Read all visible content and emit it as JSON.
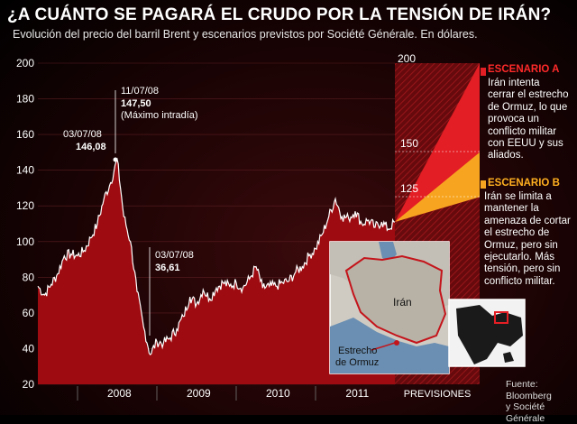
{
  "header": {
    "title": "¿A CUÁNTO SE PAGARÁ EL CRUDO POR LA TENSIÓN DE IRÁN?",
    "subtitle": "Evolución del precio del barril Brent y escenarios previstos por Société Générale. En dólares."
  },
  "colors": {
    "area": "#9e0b10",
    "line": "#ffffff",
    "scenario_a": "#e31e24",
    "scenario_b": "#f7a520",
    "scenario_a_title": "#ff2a2a",
    "scenario_b_title": "#ffb020"
  },
  "chart_data": {
    "type": "area",
    "title": "¿A CUÁNTO SE PAGARÁ EL CRUDO POR LA TENSIÓN DE IRÁN?",
    "subtitle": "Evolución del precio del barril Brent y escenarios previstos por Société Générale. En dólares.",
    "ylim": [
      20,
      200
    ],
    "yticks": [
      "20",
      "40",
      "60",
      "80",
      "100",
      "120",
      "140",
      "160",
      "180",
      "200"
    ],
    "xticks": [
      "2008",
      "2009",
      "2010",
      "2011",
      "PREVISIONES"
    ],
    "x_start": "2007-07",
    "x_end": "2012-01",
    "series": [
      {
        "values": [
          [
            "2007-07",
            75
          ],
          [
            "2007-08",
            70
          ],
          [
            "2007-09",
            76
          ],
          [
            "2007-10",
            82
          ],
          [
            "2007-11",
            92
          ],
          [
            "2007-12",
            93
          ],
          [
            "2008-01",
            92
          ],
          [
            "2008-02",
            95
          ],
          [
            "2008-03",
            102
          ],
          [
            "2008-04",
            110
          ],
          [
            "2008-05",
            124
          ],
          [
            "2008-06",
            133
          ],
          [
            "2008-07",
            146.08
          ],
          [
            "2008-08",
            114
          ],
          [
            "2008-09",
            100
          ],
          [
            "2008-10",
            72
          ],
          [
            "2008-11",
            52
          ],
          [
            "2008-12",
            36.61
          ],
          [
            "2009-01",
            44
          ],
          [
            "2009-02",
            43
          ],
          [
            "2009-03",
            46
          ],
          [
            "2009-04",
            51
          ],
          [
            "2009-05",
            58
          ],
          [
            "2009-06",
            69
          ],
          [
            "2009-07",
            65
          ],
          [
            "2009-08",
            73
          ],
          [
            "2009-09",
            68
          ],
          [
            "2009-10",
            74
          ],
          [
            "2009-11",
            77
          ],
          [
            "2009-12",
            75
          ],
          [
            "2010-01",
            77
          ],
          [
            "2010-02",
            74
          ],
          [
            "2010-03",
            79
          ],
          [
            "2010-04",
            86
          ],
          [
            "2010-05",
            74
          ],
          [
            "2010-06",
            75
          ],
          [
            "2010-07",
            75
          ],
          [
            "2010-08",
            77
          ],
          [
            "2010-09",
            78
          ],
          [
            "2010-10",
            83
          ],
          [
            "2010-11",
            86
          ],
          [
            "2010-12",
            92
          ],
          [
            "2011-01",
            96
          ],
          [
            "2011-02",
            104
          ],
          [
            "2011-03",
            114
          ],
          [
            "2011-04",
            124
          ],
          [
            "2011-05",
            114
          ],
          [
            "2011-06",
            113
          ],
          [
            "2011-07",
            117
          ],
          [
            "2011-08",
            110
          ],
          [
            "2011-09",
            112
          ],
          [
            "2011-10",
            108
          ],
          [
            "2011-11",
            111
          ],
          [
            "2011-12",
            107
          ],
          [
            "2012-01",
            111
          ]
        ]
      }
    ],
    "scenarios": [
      {
        "name": "ESCENARIO A",
        "values": [
          111,
          200
        ],
        "text": [
          "Irán intenta",
          "cerrar el estrecho",
          "de Ormuz, lo que",
          "provoca un",
          "conflicto militar",
          "con EEUU y sus",
          "aliados."
        ]
      },
      {
        "name": "ESCENARIO B",
        "values": [
          111,
          150
        ],
        "text": [
          "Irán se limita a",
          "mantener la",
          "amenaza de cortar",
          "el estrecho de",
          "Ormuz, pero sin",
          "ejecutarlo. Más",
          "tensión, pero sin",
          "conflicto militar."
        ]
      }
    ],
    "forecast_labels": [
      "200",
      "150",
      "125"
    ],
    "annotations": [
      {
        "date": "11/07/08",
        "value": "147,50",
        "note": "(Máximo intradía)"
      },
      {
        "date": "03/07/08",
        "value": "146,08"
      },
      {
        "date": "03/07/08",
        "value": "36,61"
      }
    ]
  },
  "map": {
    "label_iran": "Irán",
    "label_strait": "Estrecho\nde Ormuz"
  },
  "source": {
    "line1": "Fuente: Bloomberg",
    "line2": "y Société Générale"
  }
}
